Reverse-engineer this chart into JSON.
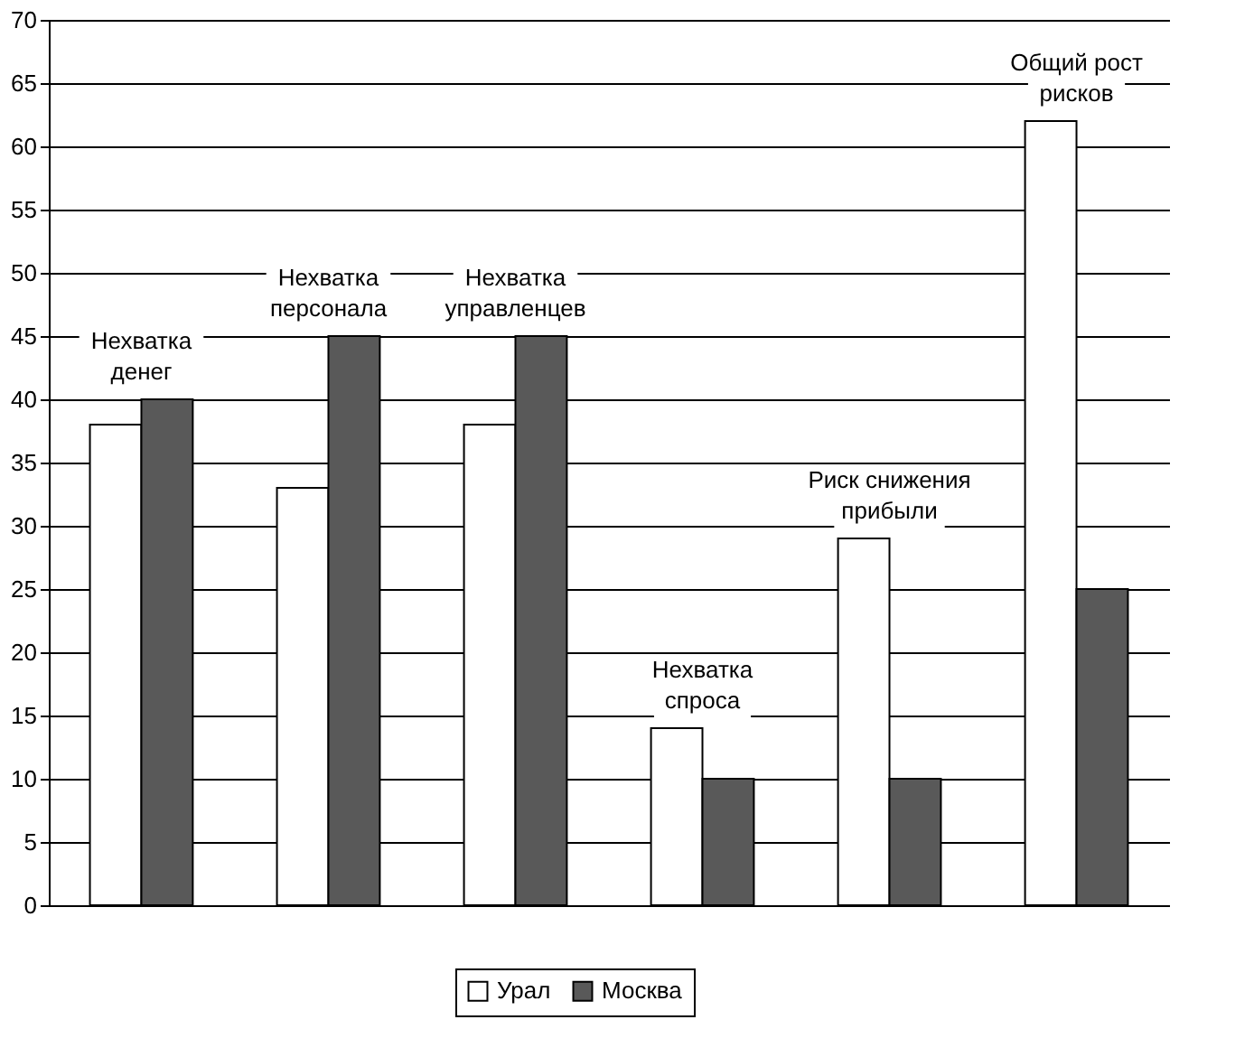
{
  "chart_data": {
    "type": "bar",
    "categories": [
      "Нехватка\nденег",
      "Нехватка\nперсонала",
      "Нехватка\nуправленцев",
      "Нехватка\nспроса",
      "Риск снижения\nприбыли",
      "Общий рост\nрисков"
    ],
    "series": [
      {
        "name": "Урал",
        "color": "#ffffff",
        "values": [
          38,
          33,
          38,
          14,
          29,
          62
        ]
      },
      {
        "name": "Москва",
        "color": "#595959",
        "values": [
          40,
          45,
          45,
          10,
          10,
          25
        ]
      }
    ],
    "ylim": [
      0,
      70
    ],
    "yticks": [
      0,
      5,
      10,
      15,
      20,
      25,
      30,
      35,
      40,
      45,
      50,
      55,
      60,
      65,
      70
    ],
    "grid": "y",
    "legend": "bottom"
  }
}
